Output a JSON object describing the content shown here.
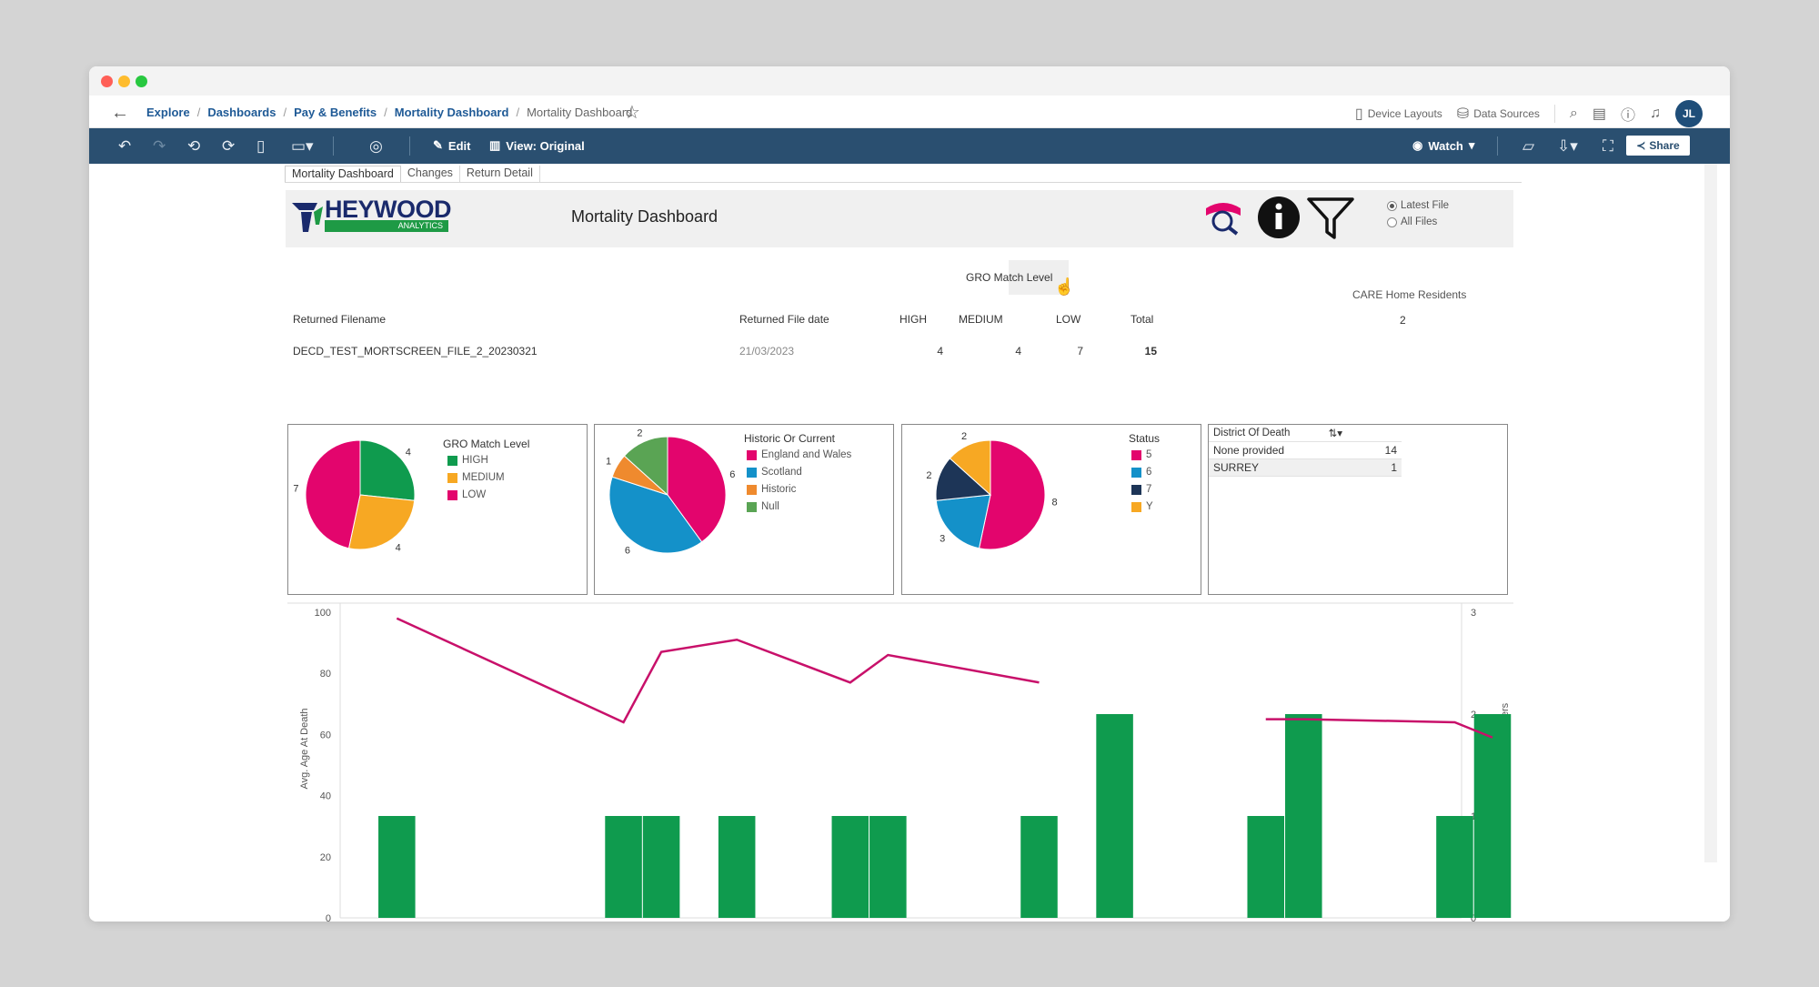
{
  "breadcrumb": {
    "items": [
      "Explore",
      "Dashboards",
      "Pay & Benefits",
      "Mortality Dashboard"
    ],
    "current": "Mortality Dashboard"
  },
  "nav": {
    "device_layouts": "Device Layouts",
    "data_sources": "Data Sources",
    "avatar_initials": "JL"
  },
  "toolbar": {
    "edit_label": "Edit",
    "view_label": "View: Original",
    "watch_label": "Watch",
    "share_label": "Share"
  },
  "tabs": [
    "Mortality Dashboard",
    "Changes",
    "Return Detail"
  ],
  "header": {
    "logo_text": "HEYWOOD",
    "logo_sub": "ANALYTICS",
    "title": "Mortality Dashboard",
    "file_options": [
      "Latest File",
      "All Files"
    ],
    "selected_option": "Latest File"
  },
  "summary": {
    "group_label": "GRO Match Level",
    "col_filename": "Returned Filename",
    "col_date": "Returned File date",
    "col_high": "HIGH",
    "col_medium": "MEDIUM",
    "col_low": "LOW",
    "col_total": "Total",
    "filename": "DECD_TEST_MORTSCREEN_FILE_2_20230321",
    "date": "21/03/2023",
    "high": "4",
    "medium": "4",
    "low": "7",
    "total": "15",
    "care_label": "CARE Home Residents",
    "care_value": "2"
  },
  "pie_gro": {
    "legend_title": "GRO Match Level",
    "slices": [
      {
        "label": "HIGH",
        "value": 4,
        "color": "#0f9b4e"
      },
      {
        "label": "MEDIUM",
        "value": 4,
        "color": "#f7a823"
      },
      {
        "label": "LOW",
        "value": 7,
        "color": "#e3056d"
      }
    ]
  },
  "pie_historic": {
    "legend_title": "Historic Or Current",
    "slices": [
      {
        "label": "England and Wales",
        "value": 6,
        "color": "#e3056d"
      },
      {
        "label": "Scotland",
        "value": 6,
        "color": "#1491c9"
      },
      {
        "label": "Historic",
        "value": 1,
        "color": "#ef8a2e"
      },
      {
        "label": "Null",
        "value": 2,
        "color": "#5aa454"
      }
    ]
  },
  "pie_status": {
    "legend_title": "Status",
    "slices": [
      {
        "label": "5",
        "value": 8,
        "color": "#e3056d"
      },
      {
        "label": "6",
        "value": 3,
        "color": "#1491c9"
      },
      {
        "label": "7",
        "value": 2,
        "color": "#1d3557"
      },
      {
        "label": "Y",
        "value": 2,
        "color": "#f7a823"
      }
    ]
  },
  "district": {
    "header": "District Of Death",
    "rows": [
      {
        "name": "None provided",
        "value": "14"
      },
      {
        "name": "SURREY",
        "value": "1"
      }
    ]
  },
  "chart_data": {
    "type": "bar",
    "ylabel": "Avg. Age At Death",
    "y2label": "Number of members",
    "ylim": [
      0,
      100
    ],
    "y2lim": [
      0,
      3
    ],
    "yticks": [
      0,
      20,
      40,
      60,
      80,
      100
    ],
    "y2ticks": [
      0,
      1,
      2,
      3
    ],
    "slots": 32,
    "bars": [
      {
        "slot": 1,
        "value": 1
      },
      {
        "slot": 7,
        "value": 1
      },
      {
        "slot": 8,
        "value": 1
      },
      {
        "slot": 10,
        "value": 1
      },
      {
        "slot": 13,
        "value": 1
      },
      {
        "slot": 14,
        "value": 1
      },
      {
        "slot": 18,
        "value": 1
      },
      {
        "slot": 20,
        "value": 2
      },
      {
        "slot": 24,
        "value": 1
      },
      {
        "slot": 25,
        "value": 2
      },
      {
        "slot": 29,
        "value": 1
      },
      {
        "slot": 30,
        "value": 2
      }
    ],
    "line_segments": [
      [
        [
          1,
          98
        ],
        [
          7,
          64
        ],
        [
          8,
          87
        ],
        [
          10,
          91
        ],
        [
          13,
          77
        ],
        [
          14,
          86
        ],
        [
          18,
          77
        ]
      ],
      [
        [
          24,
          65
        ],
        [
          25,
          65
        ],
        [
          29,
          64
        ],
        [
          30,
          59
        ]
      ]
    ],
    "bar_color": "#0f9b4e",
    "line_color": "#c8106a"
  }
}
